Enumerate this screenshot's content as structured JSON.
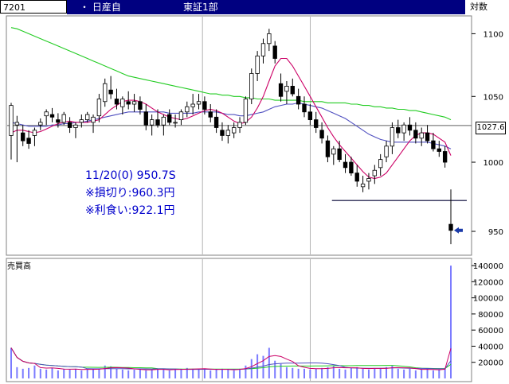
{
  "header": {
    "code": "7201",
    "name": "・ 日産自",
    "market": "東証1部",
    "scale_label": "対数"
  },
  "annotation": {
    "line1": "11/20(0) 950.7S",
    "line2": "※損切り:960.3円",
    "line3": "※利食い:922.1円"
  },
  "current_price_label": "1027.6",
  "volume_title": "売買高",
  "chart_data": [
    {
      "type": "candlestick",
      "yscale": "log",
      "ylim": [
        935,
        1112
      ],
      "yticks": [
        950,
        1000,
        1050,
        1100
      ],
      "ytick_labels": [
        "950",
        "1000",
        "1050",
        "1100"
      ],
      "grid": false,
      "reference_lines": [
        {
          "value": 1027.6,
          "label": "1027.6"
        },
        {
          "value": 972
        }
      ],
      "ohlc": [
        [
          1020,
          1045,
          1002,
          1043
        ],
        [
          1028,
          1035,
          1000,
          1030
        ],
        [
          1022,
          1028,
          1012,
          1016
        ],
        [
          1018,
          1024,
          1010,
          1014
        ],
        [
          1020,
          1026,
          1012,
          1024
        ],
        [
          1028,
          1033,
          1024,
          1030
        ],
        [
          1035,
          1040,
          1028,
          1038
        ],
        [
          1036,
          1041,
          1030,
          1034
        ],
        [
          1032,
          1037,
          1026,
          1030
        ],
        [
          1030,
          1038,
          1028,
          1036
        ],
        [
          1030,
          1034,
          1022,
          1026
        ],
        [
          1026,
          1030,
          1018,
          1028
        ],
        [
          1030,
          1036,
          1026,
          1032
        ],
        [
          1032,
          1038,
          1030,
          1036
        ],
        [
          1030,
          1036,
          1022,
          1034
        ],
        [
          1035,
          1052,
          1030,
          1048
        ],
        [
          1046,
          1064,
          1042,
          1060
        ],
        [
          1055,
          1066,
          1048,
          1052
        ],
        [
          1048,
          1056,
          1040,
          1044
        ],
        [
          1042,
          1050,
          1036,
          1048
        ],
        [
          1046,
          1054,
          1040,
          1044
        ],
        [
          1044,
          1052,
          1038,
          1046
        ],
        [
          1046,
          1050,
          1036,
          1040
        ],
        [
          1038,
          1044,
          1024,
          1028
        ],
        [
          1028,
          1036,
          1020,
          1032
        ],
        [
          1032,
          1040,
          1026,
          1028
        ],
        [
          1028,
          1036,
          1020,
          1034
        ],
        [
          1036,
          1040,
          1028,
          1030
        ],
        [
          1030,
          1036,
          1026,
          1030
        ],
        [
          1032,
          1040,
          1028,
          1038
        ],
        [
          1038,
          1046,
          1034,
          1042
        ],
        [
          1042,
          1052,
          1036,
          1044
        ],
        [
          1044,
          1052,
          1040,
          1046
        ],
        [
          1046,
          1050,
          1036,
          1040
        ],
        [
          1038,
          1044,
          1030,
          1034
        ],
        [
          1034,
          1040,
          1022,
          1026
        ],
        [
          1024,
          1030,
          1016,
          1020
        ],
        [
          1020,
          1028,
          1014,
          1024
        ],
        [
          1022,
          1030,
          1018,
          1026
        ],
        [
          1026,
          1034,
          1022,
          1030
        ],
        [
          1030,
          1050,
          1028,
          1048
        ],
        [
          1048,
          1072,
          1044,
          1068
        ],
        [
          1068,
          1086,
          1062,
          1082
        ],
        [
          1082,
          1096,
          1076,
          1092
        ],
        [
          1092,
          1104,
          1086,
          1100
        ],
        [
          1090,
          1094,
          1076,
          1080
        ],
        [
          1060,
          1068,
          1046,
          1050
        ],
        [
          1054,
          1062,
          1044,
          1058
        ],
        [
          1058,
          1064,
          1050,
          1052
        ],
        [
          1050,
          1056,
          1040,
          1044
        ],
        [
          1044,
          1050,
          1034,
          1038
        ],
        [
          1038,
          1044,
          1028,
          1032
        ],
        [
          1032,
          1038,
          1022,
          1026
        ],
        [
          1024,
          1030,
          1014,
          1018
        ],
        [
          1016,
          1020,
          1000,
          1004
        ],
        [
          1006,
          1012,
          998,
          1010
        ],
        [
          1010,
          1016,
          1000,
          1002
        ],
        [
          1000,
          1006,
          992,
          996
        ],
        [
          1000,
          1004,
          990,
          992
        ],
        [
          992,
          998,
          982,
          986
        ],
        [
          982,
          990,
          978,
          984
        ],
        [
          986,
          992,
          980,
          988
        ],
        [
          990,
          998,
          984,
          994
        ],
        [
          996,
          1006,
          990,
          1002
        ],
        [
          1004,
          1016,
          1000,
          1012
        ],
        [
          1012,
          1030,
          1006,
          1026
        ],
        [
          1026,
          1032,
          1018,
          1022
        ],
        [
          1022,
          1030,
          1016,
          1028
        ],
        [
          1028,
          1034,
          1020,
          1024
        ],
        [
          1024,
          1030,
          1014,
          1018
        ],
        [
          1018,
          1026,
          1012,
          1022
        ],
        [
          1022,
          1028,
          1014,
          1016
        ],
        [
          1016,
          1022,
          1008,
          1010
        ],
        [
          1010,
          1016,
          1004,
          1008
        ],
        [
          1008,
          1012,
          996,
          1000
        ],
        [
          955,
          980,
          941,
          950.7
        ]
      ],
      "ma_short": [
        1022,
        1024,
        1024,
        1023,
        1022,
        1023,
        1025,
        1027,
        1029,
        1030,
        1031,
        1030,
        1030,
        1030,
        1031,
        1032,
        1036,
        1040,
        1043,
        1046,
        1047,
        1047,
        1046,
        1044,
        1041,
        1038,
        1036,
        1034,
        1033,
        1032,
        1033,
        1035,
        1037,
        1039,
        1040,
        1039,
        1037,
        1034,
        1031,
        1029,
        1030,
        1034,
        1041,
        1050,
        1062,
        1074,
        1080,
        1080,
        1074,
        1066,
        1058,
        1050,
        1042,
        1034,
        1026,
        1019,
        1013,
        1008,
        1003,
        998,
        993,
        989,
        988,
        989,
        992,
        998,
        1004,
        1010,
        1016,
        1020,
        1022,
        1022,
        1021,
        1018,
        1015,
        1005
      ],
      "ma_mid": [
        1030,
        1029,
        1028,
        1027,
        1027,
        1027,
        1027,
        1028,
        1028,
        1029,
        1029,
        1030,
        1030,
        1031,
        1032,
        1033,
        1034,
        1035,
        1036,
        1037,
        1038,
        1038,
        1038,
        1038,
        1038,
        1038,
        1038,
        1037,
        1037,
        1037,
        1037,
        1037,
        1038,
        1038,
        1038,
        1038,
        1037,
        1036,
        1036,
        1035,
        1035,
        1036,
        1037,
        1038,
        1040,
        1042,
        1043,
        1044,
        1044,
        1045,
        1044,
        1043,
        1042,
        1041,
        1039,
        1037,
        1035,
        1033,
        1030,
        1027,
        1024,
        1021,
        1019,
        1017,
        1016,
        1015,
        1015,
        1015,
        1015,
        1015,
        1015,
        1015,
        1014,
        1013,
        1012,
        1010
      ],
      "ma_long": [
        1105,
        1104,
        1102,
        1100,
        1098,
        1096,
        1094,
        1092,
        1090,
        1088,
        1086,
        1084,
        1082,
        1080,
        1078,
        1076,
        1074,
        1072,
        1070,
        1068,
        1066,
        1065,
        1064,
        1063,
        1062,
        1061,
        1060,
        1059,
        1058,
        1057,
        1056,
        1055,
        1054,
        1053,
        1052,
        1052,
        1051,
        1051,
        1050,
        1050,
        1049,
        1049,
        1048,
        1048,
        1048,
        1047,
        1047,
        1047,
        1047,
        1047,
        1046,
        1046,
        1046,
        1046,
        1045,
        1045,
        1045,
        1045,
        1044,
        1044,
        1043,
        1043,
        1042,
        1042,
        1041,
        1041,
        1040,
        1040,
        1039,
        1039,
        1038,
        1037,
        1036,
        1035,
        1034,
        1032
      ]
    },
    {
      "type": "bar",
      "title": "売買高",
      "ylim": [
        0,
        145000
      ],
      "yticks": [
        20000,
        40000,
        60000,
        80000,
        100000,
        120000,
        140000
      ],
      "ytick_labels": [
        "20000",
        "40000",
        "60000",
        "80000",
        "100000",
        "120000",
        "140000"
      ],
      "values": [
        38000,
        14000,
        12000,
        13000,
        16000,
        12000,
        11000,
        13000,
        10000,
        12000,
        11000,
        12000,
        10000,
        11000,
        12000,
        12000,
        16000,
        15000,
        12000,
        11000,
        10000,
        11000,
        12000,
        10000,
        11000,
        12000,
        11000,
        10000,
        11000,
        12000,
        13000,
        12000,
        11000,
        12000,
        10000,
        11000,
        12000,
        11000,
        10000,
        12000,
        16000,
        24000,
        30000,
        28000,
        38000,
        22000,
        18000,
        14000,
        13000,
        12000,
        12000,
        11000,
        12000,
        13000,
        14000,
        16000,
        12000,
        11000,
        13000,
        14000,
        12000,
        11000,
        12000,
        13000,
        14000,
        16000,
        12000,
        11000,
        12000,
        10000,
        11000,
        12000,
        10000,
        11000,
        13000,
        140000
      ]
    }
  ]
}
